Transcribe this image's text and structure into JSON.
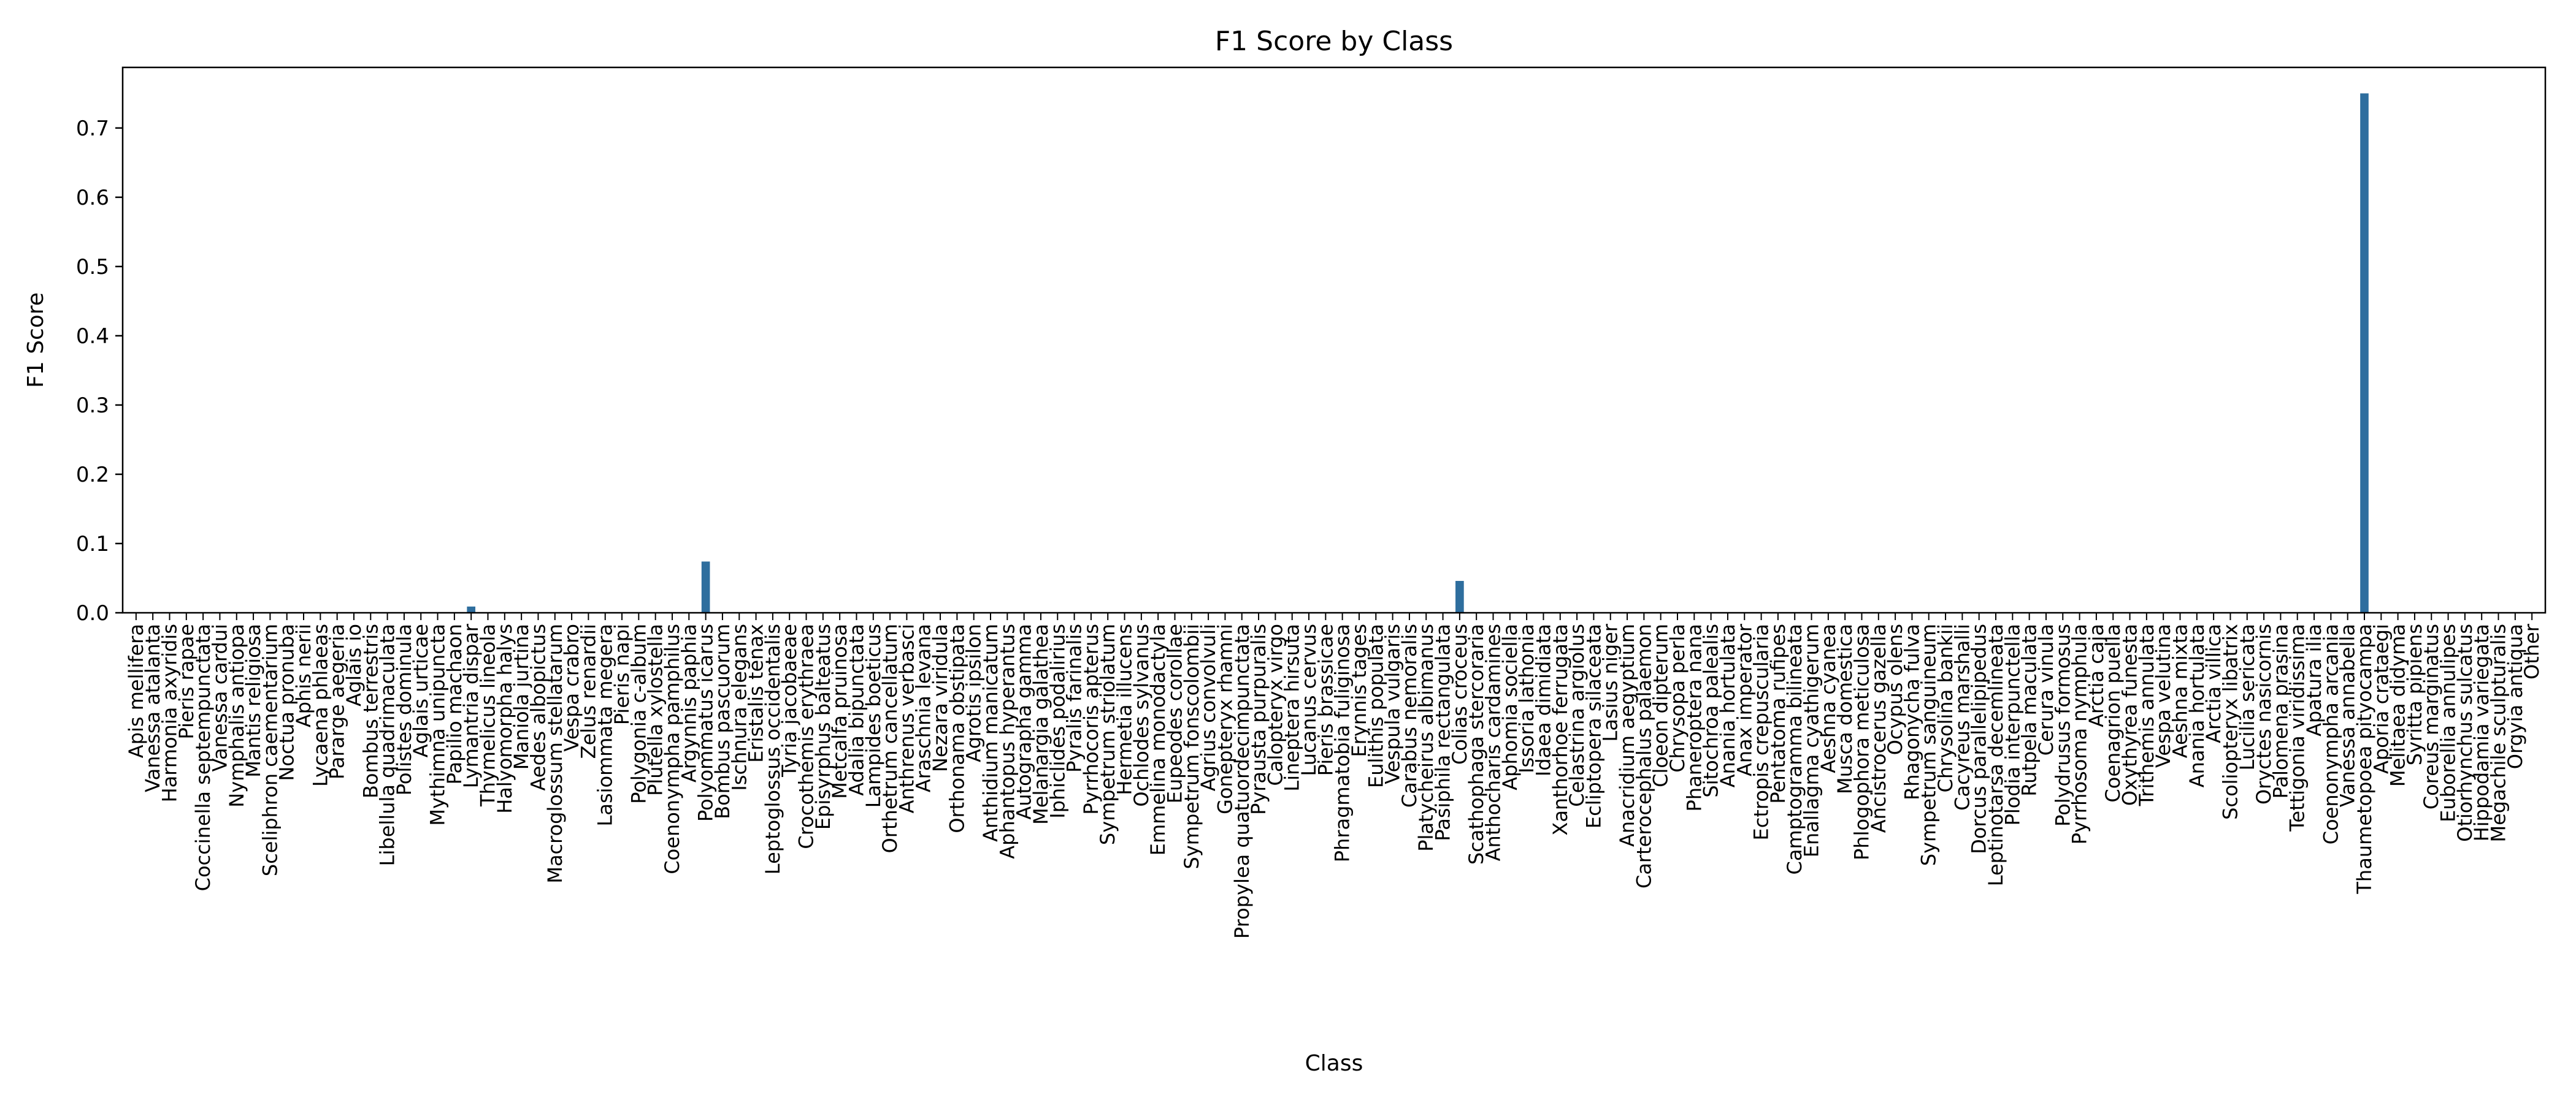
{
  "chart_data": {
    "type": "bar",
    "title": "F1 Score by Class",
    "xlabel": "Class",
    "ylabel": "F1 Score",
    "ylim": [
      0,
      0.7875
    ],
    "yticks": [
      0.0,
      0.1,
      0.2,
      0.3,
      0.4,
      0.5,
      0.6,
      0.7
    ],
    "ytick_labels": [
      "0.0",
      "0.1",
      "0.2",
      "0.3",
      "0.4",
      "0.5",
      "0.6",
      "0.7"
    ],
    "bar_color": "#2e6e9e",
    "grid": false,
    "categories": [
      "Apis mellifera",
      "Vanessa atalanta",
      "Harmonia axyridis",
      "Pieris rapae",
      "Coccinella septempunctata",
      "Vanessa cardui",
      "Nymphalis antiopa",
      "Mantis religiosa",
      "Sceliphron caementarium",
      "Noctua pronuba",
      "Aphis nerii",
      "Lycaena phlaeas",
      "Pararge aegeria",
      "Aglais io",
      "Bombus terrestris",
      "Libellula quadrimaculata",
      "Polistes dominula",
      "Aglais urticae",
      "Mythimna unipuncta",
      "Papilio machaon",
      "Lymantria dispar",
      "Thymelicus lineola",
      "Halyomorpha halys",
      "Maniola jurtina",
      "Aedes albopictus",
      "Macroglossum stellatarum",
      "Vespa crabro",
      "Zelus renardii",
      "Lasiommata megera",
      "Pieris napi",
      "Polygonia c-album",
      "Plutella xylostella",
      "Coenonympha pamphilus",
      "Argynnis paphia",
      "Polyommatus icarus",
      "Bombus pascuorum",
      "Ischnura elegans",
      "Eristalis tenax",
      "Leptoglossus occidentalis",
      "Tyria jacobaeae",
      "Crocothemis erythraea",
      "Episyrphus balteatus",
      "Metcalfa pruinosa",
      "Adalia bipunctata",
      "Lampides boeticus",
      "Orthetrum cancellatum",
      "Anthrenus verbasci",
      "Araschnia levana",
      "Nezara viridula",
      "Orthonama obstipata",
      "Agrotis ipsilon",
      "Anthidium manicatum",
      "Aphantopus hyperantus",
      "Autographa gamma",
      "Melanargia galathea",
      "Iphiclides podalirius",
      "Pyralis farinalis",
      "Pyrrhocoris apterus",
      "Sympetrum striolatum",
      "Hermetia illucens",
      "Ochlodes sylvanus",
      "Emmelina monodactyla",
      "Eupeodes corollae",
      "Sympetrum fonscolombii",
      "Agrius convolvuli",
      "Gonepteryx rhamni",
      "Propylea quatuordecimpunctata",
      "Pyrausta purpuralis",
      "Calopteryx virgo",
      "Lineptera hirsuta",
      "Lucanus cervus",
      "Pieris brassicae",
      "Phragmatobia fuliginosa",
      "Erynnis tages",
      "Eulithis populata",
      "Vespula vulgaris",
      "Carabus nemoralis",
      "Platycheirus albimanus",
      "Pasiphila rectangulata",
      "Colias croceus",
      "Scathophaga stercoraria",
      "Anthocharis cardamines",
      "Aphomia sociella",
      "Issoria lathonia",
      "Idaea dimidiata",
      "Xanthorhoe ferrugata",
      "Celastrina argiolus",
      "Ecliptopera silaceata",
      "Lasius niger",
      "Anacridium aegyptium",
      "Cartеrocephalus palaemon",
      "Cloeon dipterum",
      "Chrysopa perla",
      "Phaneroptera nana",
      "Sitochroa palealis",
      "Anania hortulata",
      "Anax imperator",
      "Ectropis crepuscularia",
      "Pentatoma rufipes",
      "Camptogramma bilineata",
      "Enallagma cyathigerum",
      "Aeshna cyanea",
      "Musca domestica",
      "Phlogophora meticulosa",
      "Ancistrocerus gazella",
      "Ocypus olens",
      "Rhagonycha fulva",
      "Sympetrum sanguineum",
      "Chrysolina bankii",
      "Cacyreus marshalli",
      "Dorcus parallelipipedus",
      "Leptinotarsa decemlineata",
      "Plodia interpunctella",
      "Rutpela maculata",
      "Cerura vinula",
      "Polydrusus formosus",
      "Pyrrhosoma nymphula",
      "Arctia caja",
      "Coenagrion puella",
      "Oxythyrea funesta",
      "Trithemis annulata",
      "Vespa velutina",
      "Aeshna mixta",
      "Anania hortulata",
      "Arctia villica",
      "Scoliopteryx libatrix",
      "Lucilia sericata",
      "Oryctes nasicornis",
      "Palomena prasina",
      "Tettigonia viridissima",
      "Apatura ilia",
      "Coenonympha arcania",
      "Vanessa annabella",
      "Thaumetopoea pityocampa",
      "Aporia crataegi",
      "Melitaea didyma",
      "Syritta pipiens",
      "Coreus marginatus",
      "Euborellia annulipes",
      "Otiorhynchus sulcatus",
      "Hippodamia variegata",
      "Megachile sculpturalis",
      "Orgyia antiqua",
      "Other"
    ],
    "values": [
      0,
      0,
      0,
      0,
      0,
      0,
      0,
      0,
      0,
      0,
      0,
      0,
      0,
      0,
      0,
      0,
      0,
      0,
      0,
      0,
      0.009,
      0,
      0,
      0,
      0,
      0,
      0,
      0,
      0,
      0,
      0,
      0,
      0,
      0,
      0.074,
      0,
      0,
      0,
      0,
      0,
      0,
      0,
      0,
      0,
      0,
      0,
      0,
      0,
      0,
      0,
      0,
      0,
      0,
      0,
      0,
      0,
      0,
      0,
      0,
      0,
      0,
      0,
      0,
      0,
      0,
      0,
      0,
      0,
      0,
      0,
      0,
      0,
      0,
      0,
      0,
      0,
      0,
      0,
      0,
      0.046,
      0,
      0,
      0,
      0,
      0,
      0,
      0,
      0,
      0,
      0,
      0,
      0,
      0,
      0,
      0,
      0,
      0,
      0,
      0,
      0,
      0,
      0,
      0,
      0,
      0,
      0,
      0,
      0,
      0,
      0,
      0,
      0,
      0,
      0,
      0,
      0,
      0,
      0,
      0,
      0,
      0,
      0,
      0,
      0,
      0,
      0,
      0,
      0,
      0,
      0,
      0,
      0,
      0,
      0.75,
      0,
      0,
      0,
      0,
      0,
      0,
      0,
      0,
      0,
      0
    ]
  }
}
